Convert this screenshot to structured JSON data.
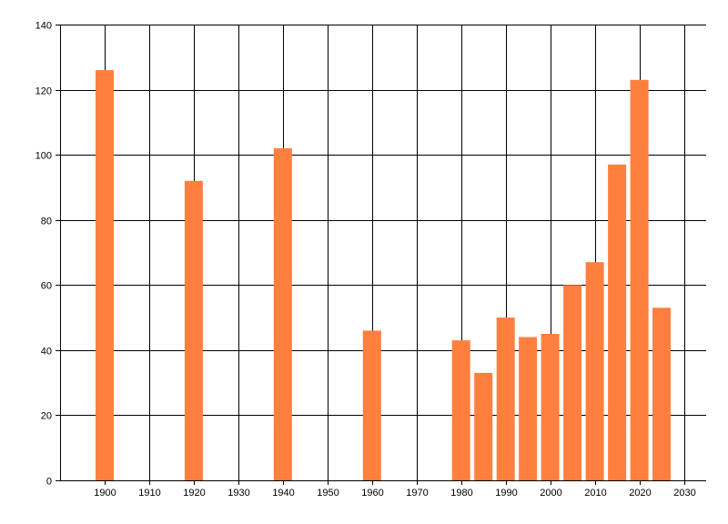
{
  "chart_data": {
    "type": "bar",
    "x": [
      1900,
      1920,
      1940,
      1960,
      1980,
      1985,
      1990,
      1995,
      2000,
      2005,
      2010,
      2015,
      2020,
      2025
    ],
    "values": [
      126,
      92,
      102,
      46,
      43,
      33,
      50,
      44,
      45,
      60,
      67,
      97,
      123,
      53
    ],
    "xlim": [
      1890,
      2035
    ],
    "ylim": [
      0,
      140
    ],
    "x_ticks": [
      1900,
      1910,
      1920,
      1930,
      1940,
      1950,
      1960,
      1970,
      1980,
      1990,
      2000,
      2010,
      2020,
      2030
    ],
    "y_ticks": [
      0,
      20,
      40,
      60,
      80,
      100,
      120,
      140
    ],
    "title": "",
    "xlabel": "",
    "ylabel": "",
    "grid": true,
    "legend": "none",
    "bar_color": "#FF7F3F",
    "grid_color": "#000000"
  }
}
